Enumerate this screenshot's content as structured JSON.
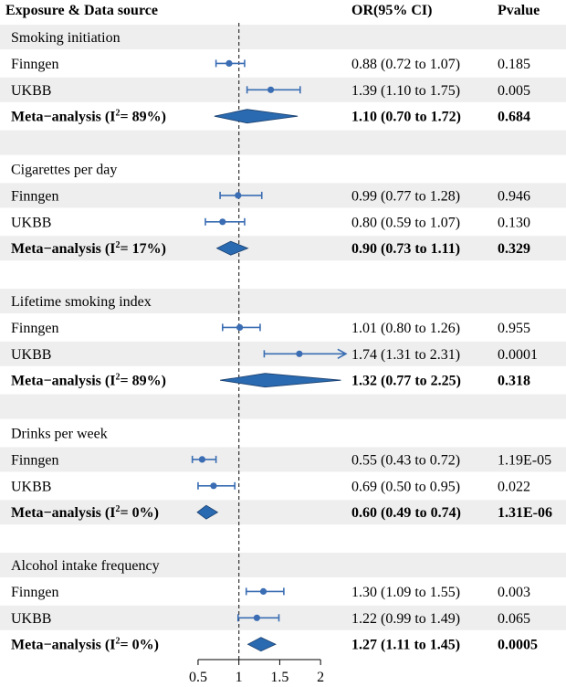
{
  "header": {
    "exposure": "Exposure & Data source",
    "or": "OR(95% CI)",
    "p": "Pvalue"
  },
  "colors": {
    "band": "#eeeeee",
    "marker": "#3a6db3",
    "diamond": "#2a6ab0",
    "text": "#000000"
  },
  "chart_data": {
    "type": "forest",
    "xlim": [
      0.4,
      2.3
    ],
    "ref_line": 1,
    "ticks": [
      0.5,
      1,
      1.5,
      2
    ],
    "tick_labels": [
      "0.5",
      "1",
      "1.5",
      "2"
    ],
    "rows": [
      {
        "kind": "group",
        "label": "Smoking initiation"
      },
      {
        "kind": "study",
        "label": "Finngen",
        "or": 0.88,
        "lo": 0.72,
        "hi": 1.07,
        "ci_text": "0.88 (0.72 to 1.07)",
        "p": "0.185"
      },
      {
        "kind": "study",
        "label": "UKBB",
        "or": 1.39,
        "lo": 1.1,
        "hi": 1.75,
        "ci_text": "1.39 (1.10 to 1.75)",
        "p": "0.005"
      },
      {
        "kind": "meta",
        "label_pre": "Meta−analysis (I",
        "label_sup": "2",
        "label_post": "= 89%)",
        "or": 1.1,
        "lo": 0.7,
        "hi": 1.72,
        "ci_text": "1.10 (0.70 to 1.72)",
        "p": "0.684"
      },
      {
        "kind": "blank"
      },
      {
        "kind": "group",
        "label": "Cigarettes per day"
      },
      {
        "kind": "study",
        "label": "Finngen",
        "or": 0.99,
        "lo": 0.77,
        "hi": 1.28,
        "ci_text": "0.99 (0.77 to 1.28)",
        "p": "0.946"
      },
      {
        "kind": "study",
        "label": "UKBB",
        "or": 0.8,
        "lo": 0.59,
        "hi": 1.07,
        "ci_text": "0.80 (0.59 to 1.07)",
        "p": "0.130"
      },
      {
        "kind": "meta",
        "label_pre": "Meta−analysis (I",
        "label_sup": "2",
        "label_post": "= 17%)",
        "or": 0.9,
        "lo": 0.73,
        "hi": 1.11,
        "ci_text": "0.90 (0.73 to 1.11)",
        "p": "0.329"
      },
      {
        "kind": "blank"
      },
      {
        "kind": "group",
        "label": "Lifetime smoking index"
      },
      {
        "kind": "study",
        "label": "Finngen",
        "or": 1.01,
        "lo": 0.8,
        "hi": 1.26,
        "ci_text": "1.01 (0.80 to 1.26)",
        "p": "0.955"
      },
      {
        "kind": "study",
        "label": "UKBB",
        "or": 1.74,
        "lo": 1.31,
        "hi": 2.31,
        "ci_text": "1.74 (1.31 to 2.31)",
        "p": "0.0001",
        "arrow": true
      },
      {
        "kind": "meta",
        "label_pre": "Meta−analysis (I",
        "label_sup": "2",
        "label_post": "= 89%)",
        "or": 1.32,
        "lo": 0.77,
        "hi": 2.25,
        "ci_text": "1.32 (0.77 to 2.25)",
        "p": "0.318"
      },
      {
        "kind": "blank"
      },
      {
        "kind": "group",
        "label": "Drinks per week"
      },
      {
        "kind": "study",
        "label": "Finngen",
        "or": 0.55,
        "lo": 0.43,
        "hi": 0.72,
        "ci_text": "0.55 (0.43 to 0.72)",
        "p": "1.19E-05"
      },
      {
        "kind": "study",
        "label": "UKBB",
        "or": 0.69,
        "lo": 0.5,
        "hi": 0.95,
        "ci_text": "0.69 (0.50 to 0.95)",
        "p": "0.022"
      },
      {
        "kind": "meta",
        "label_pre": "Meta−analysis (I",
        "label_sup": "2",
        "label_post": "= 0%)",
        "or": 0.6,
        "lo": 0.49,
        "hi": 0.74,
        "ci_text": "0.60 (0.49 to 0.74)",
        "p": "1.31E-06"
      },
      {
        "kind": "blank"
      },
      {
        "kind": "group",
        "label": "Alcohol intake frequency"
      },
      {
        "kind": "study",
        "label": "Finngen",
        "or": 1.3,
        "lo": 1.09,
        "hi": 1.55,
        "ci_text": "1.30 (1.09 to 1.55)",
        "p": "0.003"
      },
      {
        "kind": "study",
        "label": "UKBB",
        "or": 1.22,
        "lo": 0.99,
        "hi": 1.49,
        "ci_text": "1.22 (0.99 to 1.49)",
        "p": "0.065"
      },
      {
        "kind": "meta",
        "label_pre": "Meta−analysis (I",
        "label_sup": "2",
        "label_post": "= 0%)",
        "or": 1.27,
        "lo": 1.11,
        "hi": 1.45,
        "ci_text": "1.27 (1.11 to 1.45)",
        "p": "0.0005"
      }
    ]
  }
}
